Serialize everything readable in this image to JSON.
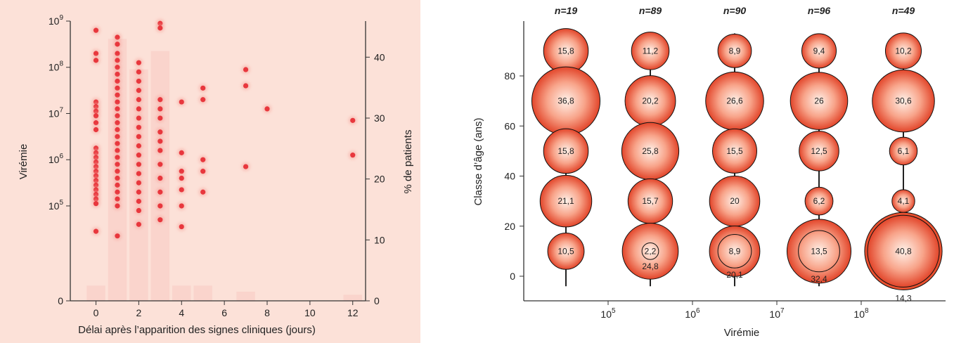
{
  "chart_data": [
    {
      "type": "scatter",
      "xlabel": "Délai après l’apparition des signes cliniques (jours)",
      "ylabel_left": "Virémie",
      "ylabel_right": "% de patients",
      "x_ticks": [
        "0",
        "2",
        "4",
        "6",
        "8",
        "10",
        "12"
      ],
      "y_left_ticks": [
        {
          "base": "0",
          "exp": ""
        },
        {
          "base": "10",
          "exp": "5"
        },
        {
          "base": "10",
          "exp": "6"
        },
        {
          "base": "10",
          "exp": "7"
        },
        {
          "base": "10",
          "exp": "8"
        },
        {
          "base": "10",
          "exp": "9"
        }
      ],
      "y_right_ticks": [
        "0",
        "10",
        "20",
        "30",
        "40"
      ],
      "xlim": [
        -1.2,
        12.6
      ],
      "ylim_right": [
        0,
        45
      ],
      "ylim_left_log10": [
        3.6,
        9.0
      ],
      "bars_pct": [
        {
          "x": 0,
          "pct": 2.5
        },
        {
          "x": 1,
          "pct": 43
        },
        {
          "x": 2,
          "pct": 38
        },
        {
          "x": 3,
          "pct": 41
        },
        {
          "x": 4,
          "pct": 2.5
        },
        {
          "x": 5,
          "pct": 2.5
        },
        {
          "x": 7,
          "pct": 1.5
        },
        {
          "x": 12,
          "pct": 1
        }
      ],
      "points": [
        [
          0,
          8.8
        ],
        [
          0,
          8.3
        ],
        [
          0,
          8.15
        ],
        [
          0,
          7.25
        ],
        [
          0,
          7.15
        ],
        [
          0,
          7.05
        ],
        [
          0,
          6.95
        ],
        [
          0,
          6.8
        ],
        [
          0,
          6.65
        ],
        [
          0,
          6.25
        ],
        [
          0,
          6.15
        ],
        [
          0,
          6.05
        ],
        [
          0,
          5.95
        ],
        [
          0,
          5.85
        ],
        [
          0,
          5.75
        ],
        [
          0,
          5.65
        ],
        [
          0,
          5.55
        ],
        [
          0,
          5.45
        ],
        [
          0,
          5.35
        ],
        [
          0,
          5.25
        ],
        [
          0,
          5.15
        ],
        [
          0,
          5.05
        ],
        [
          0,
          4.45
        ],
        [
          1,
          8.65
        ],
        [
          1,
          8.5
        ],
        [
          1,
          8.3
        ],
        [
          1,
          8.15
        ],
        [
          1,
          8.0
        ],
        [
          1,
          7.85
        ],
        [
          1,
          7.7
        ],
        [
          1,
          7.55
        ],
        [
          1,
          7.4
        ],
        [
          1,
          7.25
        ],
        [
          1,
          7.1
        ],
        [
          1,
          6.95
        ],
        [
          1,
          6.8
        ],
        [
          1,
          6.65
        ],
        [
          1,
          6.5
        ],
        [
          1,
          6.35
        ],
        [
          1,
          6.2
        ],
        [
          1,
          6.05
        ],
        [
          1,
          5.9
        ],
        [
          1,
          5.75
        ],
        [
          1,
          5.6
        ],
        [
          1,
          5.45
        ],
        [
          1,
          5.3
        ],
        [
          1,
          5.15
        ],
        [
          1,
          5.0
        ],
        [
          1,
          4.35
        ],
        [
          2,
          8.1
        ],
        [
          2,
          7.9
        ],
        [
          2,
          7.7
        ],
        [
          2,
          7.5
        ],
        [
          2,
          7.3
        ],
        [
          2,
          7.1
        ],
        [
          2,
          6.9
        ],
        [
          2,
          6.7
        ],
        [
          2,
          6.5
        ],
        [
          2,
          6.3
        ],
        [
          2,
          6.1
        ],
        [
          2,
          5.9
        ],
        [
          2,
          5.7
        ],
        [
          2,
          5.5
        ],
        [
          2,
          5.3
        ],
        [
          2,
          5.1
        ],
        [
          2,
          4.9
        ],
        [
          2,
          4.6
        ],
        [
          3,
          8.95
        ],
        [
          3,
          8.85
        ],
        [
          3,
          7.3
        ],
        [
          3,
          7.1
        ],
        [
          3,
          6.9
        ],
        [
          3,
          6.6
        ],
        [
          3,
          6.4
        ],
        [
          3,
          6.2
        ],
        [
          3,
          5.9
        ],
        [
          3,
          5.6
        ],
        [
          3,
          5.3
        ],
        [
          3,
          5.0
        ],
        [
          3,
          4.7
        ],
        [
          4,
          7.25
        ],
        [
          4,
          6.15
        ],
        [
          4,
          5.75
        ],
        [
          4,
          5.6
        ],
        [
          4,
          5.35
        ],
        [
          4,
          5.0
        ],
        [
          4,
          4.55
        ],
        [
          5,
          7.55
        ],
        [
          5,
          7.3
        ],
        [
          5,
          6.0
        ],
        [
          5,
          5.75
        ],
        [
          5,
          5.3
        ],
        [
          7,
          7.95
        ],
        [
          7,
          7.6
        ],
        [
          7,
          5.85
        ],
        [
          8,
          7.1
        ],
        [
          12,
          6.85
        ],
        [
          12,
          6.1
        ]
      ]
    },
    {
      "type": "scatter",
      "xlabel": "Virémie",
      "ylabel": "Classe d’âge (ans)",
      "x_ticks": [
        {
          "base": "10",
          "exp": "5",
          "log10": 5
        },
        {
          "base": "10",
          "exp": "6",
          "log10": 6
        },
        {
          "base": "10",
          "exp": "7",
          "log10": 7
        },
        {
          "base": "10",
          "exp": "8",
          "log10": 8
        }
      ],
      "y_ticks": [
        "0",
        "20",
        "40",
        "60",
        "80"
      ],
      "xlim_log10": [
        4.0,
        9.0
      ],
      "ylim": [
        -10,
        102
      ],
      "columns": [
        {
          "n": "n=19",
          "log10x": 4.5,
          "bubbles": [
            {
              "y": 90,
              "v": 15.8,
              "label": "15,8"
            },
            {
              "y": 70,
              "v": 36.8,
              "label": "36,8"
            },
            {
              "y": 50,
              "v": 15.8,
              "label": "15,8"
            },
            {
              "y": 30,
              "v": 21.1,
              "label": "21,1"
            },
            {
              "y": 10,
              "v": 10.5,
              "label": "10,5"
            }
          ]
        },
        {
          "n": "n=89",
          "log10x": 5.5,
          "bubbles": [
            {
              "y": 90,
              "v": 11.2,
              "label": "11,2"
            },
            {
              "y": 70,
              "v": 20.2,
              "label": "20,2"
            },
            {
              "y": 50,
              "v": 25.8,
              "label": "25,8"
            },
            {
              "y": 30,
              "v": 15.7,
              "label": "15,7"
            },
            {
              "y": 10,
              "v": 24.8,
              "label": "24,8",
              "inner": 2.2,
              "inner_label": "2,2"
            }
          ]
        },
        {
          "n": "n=90",
          "log10x": 6.5,
          "bubbles": [
            {
              "y": 90,
              "v": 8.9,
              "label": "8,9"
            },
            {
              "y": 70,
              "v": 26.6,
              "label": "26,6"
            },
            {
              "y": 50,
              "v": 15.5,
              "label": "15,5"
            },
            {
              "y": 30,
              "v": 20,
              "label": "20"
            },
            {
              "y": 10,
              "v": 20.1,
              "label": "20,1",
              "inner": 8.9,
              "inner_label": "8,9"
            }
          ]
        },
        {
          "n": "n=96",
          "log10x": 7.5,
          "bubbles": [
            {
              "y": 90,
              "v": 9.4,
              "label": "9,4"
            },
            {
              "y": 70,
              "v": 26,
              "label": "26"
            },
            {
              "y": 50,
              "v": 12.5,
              "label": "12,5"
            },
            {
              "y": 30,
              "v": 6.2,
              "label": "6,2"
            },
            {
              "y": 10,
              "v": 32.4,
              "label": "32,4",
              "inner": 13.5,
              "inner_label": "13,5"
            }
          ]
        },
        {
          "n": "n=49",
          "log10x": 8.5,
          "bubbles": [
            {
              "y": 90,
              "v": 10.2,
              "label": "10,2"
            },
            {
              "y": 70,
              "v": 30.6,
              "label": "30,6"
            },
            {
              "y": 50,
              "v": 6.1,
              "label": "6,1"
            },
            {
              "y": 30,
              "v": 4.1,
              "label": "4,1"
            },
            {
              "y": 10,
              "v": 40.8,
              "label": "40,8",
              "outer": 14.3,
              "outer_label": "14,3"
            }
          ]
        }
      ]
    }
  ],
  "colors": {
    "background": "#fde5dc",
    "dot": "#ea4a4a",
    "bubble_center": "#fff1e8",
    "bubble_edge": "#e74a2a"
  }
}
